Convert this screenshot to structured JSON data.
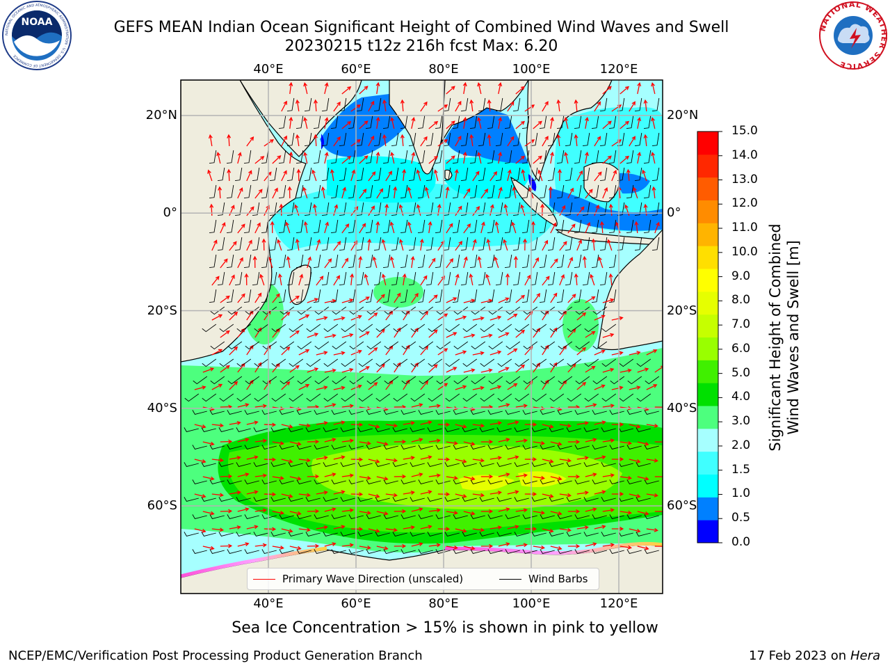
{
  "title": {
    "line1": "GEFS MEAN Indian Ocean Significant Height of Combined Wind Waves and Swell",
    "line2": "20230215 t12z 216h fcst   Max: 6.20"
  },
  "logos": {
    "left": "NOAA",
    "left_ring_text": "NATIONAL OCEANIC AND ATMOSPHERIC ADMINISTRATION · U.S. DEPARTMENT OF COMMERCE",
    "right_ring_text": "NATIONAL WEATHER SERVICE"
  },
  "map": {
    "lon_labels": [
      "40°E",
      "60°E",
      "80°E",
      "100°E",
      "120°E"
    ],
    "lon_values": [
      40,
      60,
      80,
      100,
      120
    ],
    "lat_labels": [
      "20°N",
      "0°",
      "20°S",
      "40°S",
      "60°S"
    ],
    "lat_values": [
      20,
      0,
      -20,
      -40,
      -60
    ],
    "lon_range": [
      20,
      130
    ],
    "lat_range": [
      -75,
      28
    ],
    "colors": {
      "land": "#efedde",
      "grid": "#b3b3b3",
      "wave_arrow": "#ff0000",
      "wind_barb": "#000000"
    }
  },
  "legend": {
    "wave_label": "Primary Wave Direction (unscaled)",
    "wind_label": "Wind Barbs"
  },
  "colorbar": {
    "title": "Significant Height of Combined\nWind Waves and Swell [m]",
    "tick_labels": [
      "0.0",
      "0.5",
      "1.0",
      "1.5",
      "2.0",
      "3.0",
      "4.0",
      "5.0",
      "6.0",
      "7.0",
      "8.0",
      "9.0",
      "10.0",
      "11.0",
      "12.0",
      "13.0",
      "14.0",
      "15.0"
    ],
    "colors": [
      "#0000ff",
      "#0080ff",
      "#00ffff",
      "#40ffff",
      "#a6ffff",
      "#4dff7e",
      "#00e000",
      "#40f000",
      "#99ff00",
      "#c6ff00",
      "#e6ff00",
      "#ffff00",
      "#ffdf00",
      "#ffb400",
      "#ff8c00",
      "#ff5c00",
      "#ff2800",
      "#ff0000"
    ]
  },
  "ice_note": "Sea Ice Concentration > 15% is shown in pink to yellow",
  "footer": {
    "left": "NCEP/EMC/Verification Post Processing Product Generation Branch",
    "right_date": "17 Feb 2023 on",
    "right_host": "Hera"
  }
}
